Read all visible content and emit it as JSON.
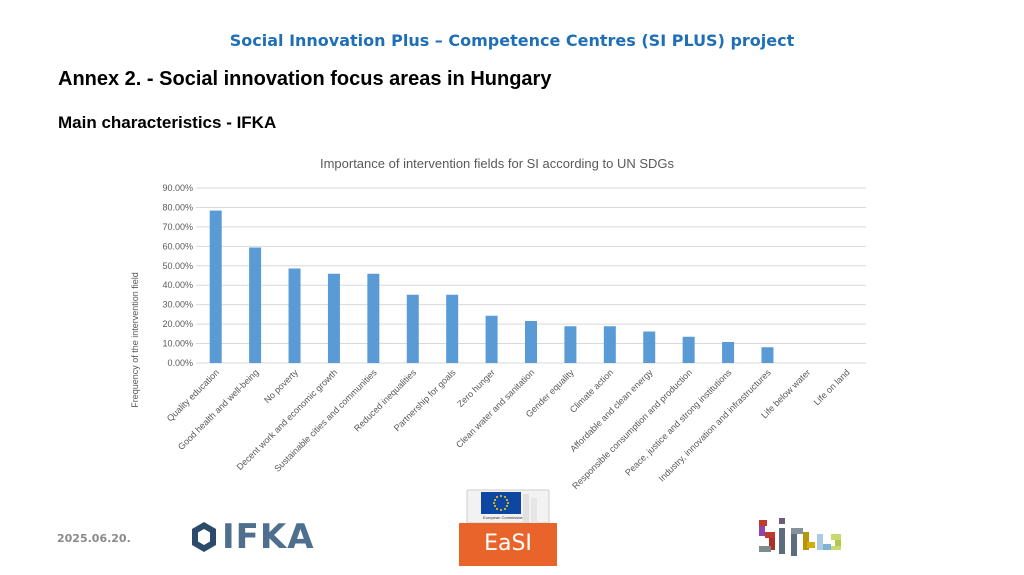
{
  "header": {
    "project_title": "Social Innovation Plus – Competence Centres (SI PLUS) project",
    "annex_title": "Annex 2. - Social innovation focus areas in Hungary",
    "subtitle": "Main characteristics - IFKA"
  },
  "footer": {
    "date": "2025.06.20.",
    "ifka_label": "IFKA",
    "easi_label": "EaSI",
    "ec_label": "European Commission"
  },
  "colors": {
    "bar": "#5b9bd5",
    "title": "#1f6fb7",
    "grid": "#d9d9d9"
  },
  "chart_data": {
    "type": "bar",
    "title": "Importance of intervention fields for SI according to UN SDGs",
    "ylabel": "Frequency of the intervention field",
    "xlabel": "",
    "ylim": [
      0,
      0.9
    ],
    "ytick_step": 0.1,
    "grid": true,
    "categories": [
      "Quality education",
      "Good health and well-being",
      "No poverty",
      "Decent work and economic growth",
      "Sustainable cities and communities",
      "Reduced inequalities",
      "Partnership for goals",
      "Zero hunger",
      "Clean water and sanitation",
      "Gender equality",
      "Climate action",
      "Affordable and clean energy",
      "Responsible consumption and production",
      "Peace, justice and strong institutions",
      "Industry, innovation and infrastructures",
      "Life below water",
      "Life on land"
    ],
    "values": [
      0.784,
      0.594,
      0.486,
      0.459,
      0.459,
      0.351,
      0.351,
      0.243,
      0.216,
      0.189,
      0.189,
      0.162,
      0.135,
      0.108,
      0.081,
      0.0,
      0.0
    ]
  }
}
